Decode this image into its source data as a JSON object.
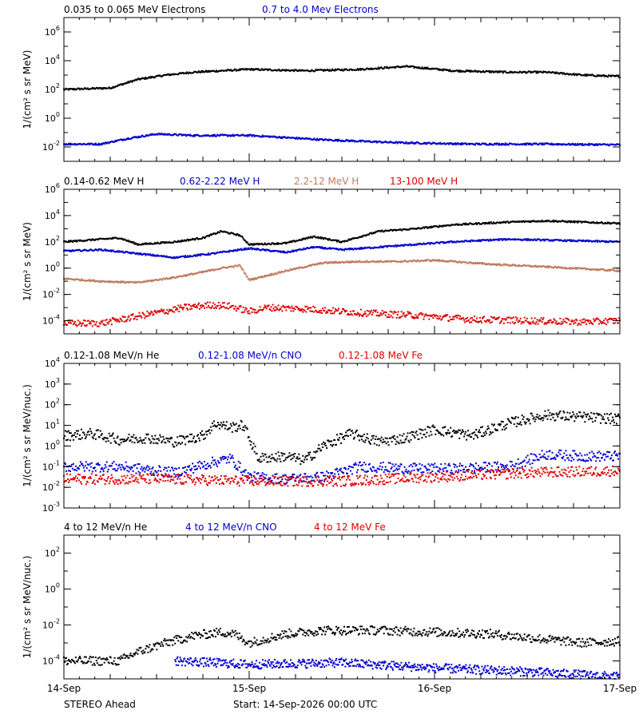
{
  "colors": {
    "black": "#000000",
    "blue": "#0000cc",
    "tan": "#c07a5e",
    "red": "#dd0000"
  },
  "footer": {
    "spacecraft": "STEREO Ahead",
    "start": "Start: 14-Sep-2026 00:00 UTC"
  },
  "x_axis": {
    "tick_labels": [
      "14-Sep",
      "15-Sep",
      "16-Sep",
      "17-Sep"
    ],
    "range_days": [
      0,
      3
    ]
  },
  "chart_data": [
    {
      "type": "scatter",
      "ylabel": "1/(cm² s sr MeV)",
      "yscale": "log",
      "ylim_exp": [
        -3,
        7
      ],
      "y_tick_exponents": [
        -2,
        0,
        2,
        4,
        6
      ],
      "y_tick_format": "power",
      "series": [
        {
          "name": "0.035 to 0.065 MeV Electrons",
          "color": "black",
          "x": [
            0,
            0.25,
            0.4,
            0.55,
            0.7,
            0.85,
            1.0,
            1.3,
            1.6,
            1.85,
            2.1,
            2.4,
            2.6,
            2.8,
            3.0
          ],
          "y_log": [
            2.0,
            2.1,
            2.7,
            3.0,
            3.2,
            3.3,
            3.4,
            3.3,
            3.4,
            3.6,
            3.3,
            3.2,
            3.2,
            3.0,
            2.9
          ]
        },
        {
          "name": "0.7 to 4.0 Mev Electrons",
          "color": "blue",
          "x": [
            0,
            0.2,
            0.35,
            0.5,
            0.7,
            1.0,
            1.4,
            1.8,
            2.2,
            2.6,
            3.0
          ],
          "y_log": [
            -1.8,
            -1.8,
            -1.4,
            -1.1,
            -1.2,
            -1.2,
            -1.5,
            -1.7,
            -1.8,
            -1.8,
            -1.85
          ]
        }
      ]
    },
    {
      "type": "scatter",
      "ylabel": "1/(cm² s sr MeV)",
      "yscale": "log",
      "ylim_exp": [
        -5,
        6
      ],
      "y_tick_exponents": [
        -4,
        -2,
        0,
        2,
        4,
        6
      ],
      "y_tick_format": "power",
      "series": [
        {
          "name": "0.14-0.62 MeV H",
          "color": "black",
          "x": [
            0,
            0.3,
            0.4,
            0.6,
            0.75,
            0.85,
            0.95,
            1.0,
            1.2,
            1.35,
            1.5,
            1.7,
            1.9,
            2.1,
            2.4,
            2.6,
            2.8,
            3.0
          ],
          "y_log": [
            2.0,
            2.3,
            1.8,
            2.0,
            2.3,
            2.8,
            2.5,
            1.8,
            1.9,
            2.4,
            2.0,
            2.8,
            3.0,
            3.3,
            3.5,
            3.6,
            3.5,
            3.4
          ]
        },
        {
          "name": "0.62-2.22 MeV H",
          "color": "blue",
          "x": [
            0,
            0.2,
            0.4,
            0.6,
            0.8,
            1.0,
            1.2,
            1.35,
            1.5,
            1.8,
            2.1,
            2.4,
            2.7,
            3.0
          ],
          "y_log": [
            1.3,
            1.4,
            1.1,
            0.8,
            1.1,
            1.5,
            1.2,
            1.6,
            1.4,
            1.7,
            2.0,
            2.2,
            2.1,
            2.0
          ]
        },
        {
          "name": "2.2-12 MeV H",
          "color": "tan",
          "x": [
            0,
            0.2,
            0.4,
            0.6,
            0.75,
            0.85,
            0.95,
            1.0,
            1.2,
            1.4,
            1.6,
            1.8,
            2.0,
            2.3,
            2.6,
            3.0
          ],
          "y_log": [
            -0.8,
            -1.0,
            -1.1,
            -0.7,
            -0.3,
            0.0,
            0.2,
            -0.9,
            -0.2,
            0.4,
            0.5,
            0.5,
            0.6,
            0.3,
            0.1,
            -0.2
          ]
        },
        {
          "name": "13-100 MeV H",
          "color": "red",
          "x": [
            0,
            0.2,
            0.35,
            0.5,
            0.65,
            0.8,
            0.9,
            1.0,
            1.1,
            1.3,
            1.6,
            1.9,
            2.2,
            2.5,
            2.8,
            3.0
          ],
          "y_log": [
            -4.2,
            -4.2,
            -3.8,
            -3.4,
            -3.0,
            -2.8,
            -2.9,
            -3.3,
            -3.0,
            -3.1,
            -3.4,
            -3.6,
            -3.9,
            -4.0,
            -4.1,
            -4.0
          ]
        }
      ]
    },
    {
      "type": "scatter",
      "ylabel": "1/(cm² s sr MeV/nuc.)",
      "yscale": "log",
      "ylim_exp": [
        -3,
        4
      ],
      "y_tick_exponents": [
        -3,
        -2,
        -1,
        0,
        1,
        2,
        3,
        4
      ],
      "y_tick_format": "power",
      "series": [
        {
          "name": "0.12-1.08 MeV/n He",
          "color": "black",
          "x": [
            0,
            0.15,
            0.3,
            0.45,
            0.6,
            0.75,
            0.82,
            0.9,
            0.97,
            1.05,
            1.2,
            1.3,
            1.4,
            1.55,
            1.7,
            1.85,
            2.0,
            2.2,
            2.4,
            2.6,
            2.8,
            3.0
          ],
          "y_log": [
            0.5,
            0.6,
            0.3,
            0.4,
            0.2,
            0.5,
            1.1,
            0.9,
            1.0,
            -0.6,
            -0.5,
            -0.7,
            0.0,
            0.6,
            0.2,
            0.4,
            0.8,
            0.5,
            1.1,
            1.5,
            1.4,
            1.3
          ]
        },
        {
          "name": "0.12-1.08 MeV/n CNO",
          "color": "blue",
          "x": [
            0,
            0.3,
            0.6,
            0.8,
            0.9,
            1.0,
            1.2,
            1.4,
            1.6,
            1.9,
            2.1,
            2.4,
            2.6,
            2.8,
            3.0
          ],
          "y_log": [
            -1.0,
            -1.0,
            -1.3,
            -0.8,
            -0.6,
            -1.5,
            -1.6,
            -1.5,
            -1.0,
            -1.1,
            -1.1,
            -1.0,
            -0.4,
            -0.5,
            -0.5
          ]
        },
        {
          "name": "0.12-1.08 MeV Fe",
          "color": "red",
          "x": [
            0,
            0.5,
            1.0,
            1.5,
            2.0,
            2.5,
            3.0
          ],
          "y_log": [
            -1.6,
            -1.6,
            -1.7,
            -1.7,
            -1.5,
            -1.3,
            -1.2
          ]
        }
      ]
    },
    {
      "type": "scatter",
      "ylabel": "1/(cm² s sr MeV/nuc.)",
      "yscale": "log",
      "ylim_exp": [
        -5,
        3
      ],
      "y_tick_exponents": [
        -4,
        -2,
        0,
        2
      ],
      "y_tick_format": "power",
      "series": [
        {
          "name": "4 to 12 MeV/n He",
          "color": "black",
          "x": [
            0,
            0.15,
            0.3,
            0.4,
            0.55,
            0.7,
            0.85,
            0.92,
            1.0,
            1.2,
            1.4,
            1.7,
            2.0,
            2.3,
            2.6,
            2.8,
            3.0
          ],
          "y_log": [
            -4.0,
            -4.0,
            -4.0,
            -3.5,
            -3.0,
            -2.6,
            -2.4,
            -2.5,
            -3.0,
            -2.5,
            -2.3,
            -2.3,
            -2.4,
            -2.5,
            -2.8,
            -3.0,
            -2.9
          ]
        },
        {
          "name": "4 to 12 MeV/n CNO",
          "color": "blue",
          "x": [
            0.6,
            1.0,
            1.5,
            2.0,
            2.5,
            3.0
          ],
          "y_log": [
            -4.0,
            -4.2,
            -4.1,
            -4.4,
            -4.6,
            -4.9
          ]
        },
        {
          "name": "4 to 12 MeV Fe",
          "color": "red",
          "x": [],
          "y_log": []
        }
      ]
    }
  ]
}
